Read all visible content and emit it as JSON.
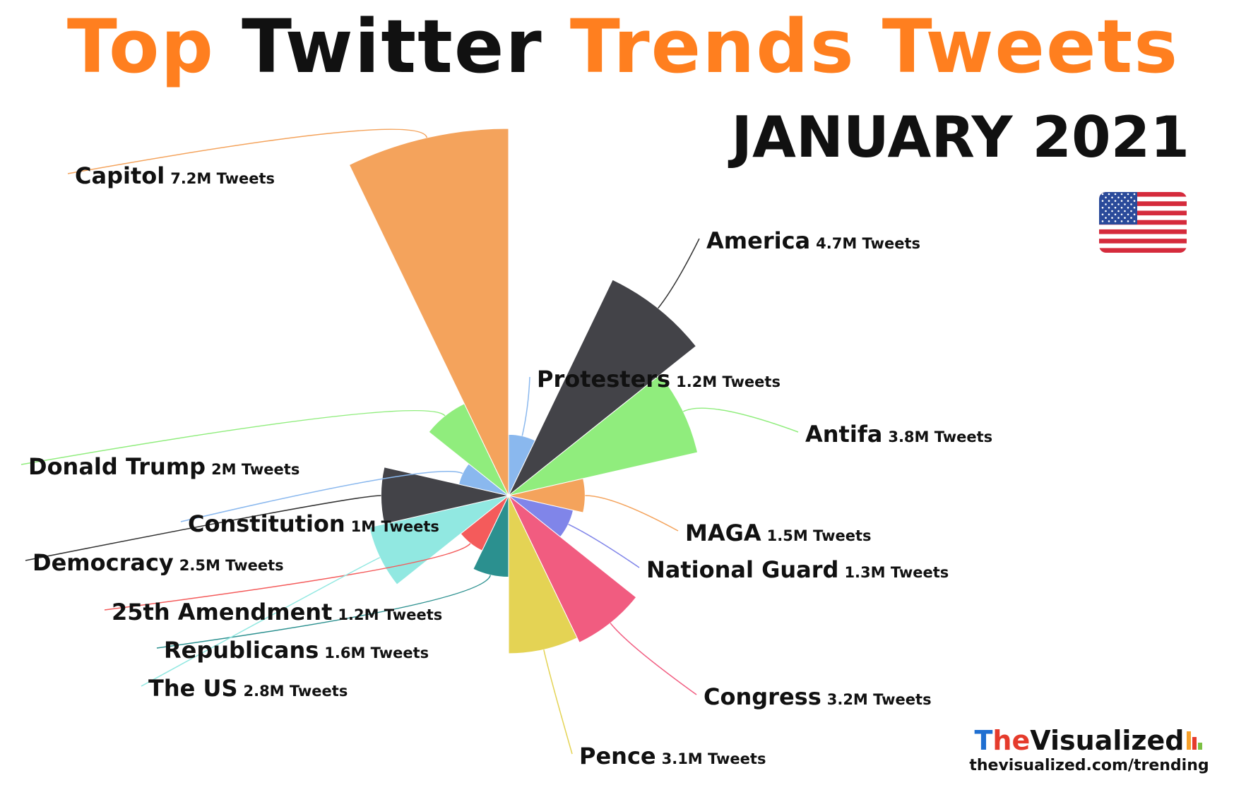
{
  "title": {
    "word1": "Top",
    "word2": "Twitter",
    "word3": "Trends Tweets"
  },
  "subtitle": "JANUARY 2021",
  "flag_icon": "us-flag-icon",
  "brand": {
    "name_part1": "T",
    "name_part2": "he",
    "name_part3": "Visualized",
    "url": "thevisualized.com/trending",
    "logo_icon": "bar-chart-logo-icon"
  },
  "colors": {
    "title_orange": "#ff7f1f",
    "title_black": "#111111"
  },
  "chart_data": {
    "type": "pie",
    "variant": "polar-area (radius proportional to tweets, equal angles)",
    "unit": "M Tweets",
    "series": [
      {
        "label": "Protesters",
        "value": 1.2,
        "value_text": "1.2M Tweets",
        "color": "#8ab8ee"
      },
      {
        "label": "America",
        "value": 4.7,
        "value_text": "4.7M Tweets",
        "color": "#434348"
      },
      {
        "label": "Antifa",
        "value": 3.8,
        "value_text": "3.8M Tweets",
        "color": "#90ed7d"
      },
      {
        "label": "MAGA",
        "value": 1.5,
        "value_text": "1.5M Tweets",
        "color": "#f4a35c"
      },
      {
        "label": "National Guard",
        "value": 1.3,
        "value_text": "1.3M Tweets",
        "color": "#8085e9"
      },
      {
        "label": "Congress",
        "value": 3.2,
        "value_text": "3.2M Tweets",
        "color": "#f15c80"
      },
      {
        "label": "Pence",
        "value": 3.1,
        "value_text": "3.1M Tweets",
        "color": "#e4d354"
      },
      {
        "label": "Republicans",
        "value": 1.6,
        "value_text": "1.6M Tweets",
        "color": "#2b908f"
      },
      {
        "label": "25th Amendment",
        "value": 1.2,
        "value_text": "1.2M Tweets",
        "color": "#f45b5b"
      },
      {
        "label": "The US",
        "value": 2.8,
        "value_text": "2.8M Tweets",
        "color": "#91e8e1"
      },
      {
        "label": "Democracy",
        "value": 2.5,
        "value_text": "2.5M Tweets",
        "color": "#434348"
      },
      {
        "label": "Constitution",
        "value": 1.0,
        "value_text": "1M Tweets",
        "color": "#8ab8ee"
      },
      {
        "label": "Donald Trump",
        "value": 2.0,
        "value_text": "2M Tweets",
        "color": "#90ed7d"
      },
      {
        "label": "Capitol",
        "value": 7.2,
        "value_text": "7.2M Tweets",
        "color": "#f4a35c"
      }
    ]
  }
}
